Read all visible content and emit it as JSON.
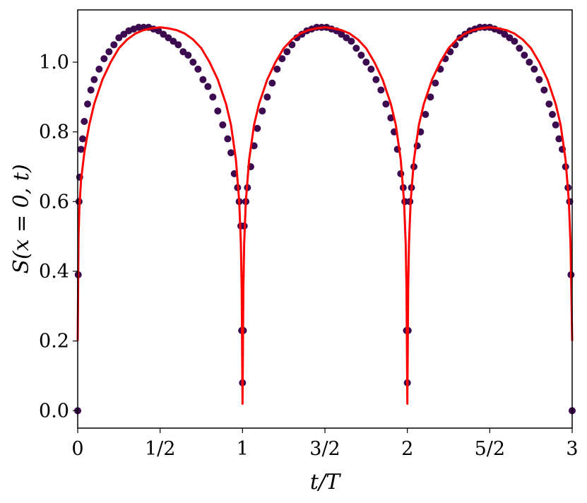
{
  "chart_data": {
    "type": "scatter",
    "xlabel": "t/T",
    "ylabel": "S(x = 0, t)",
    "xlim": [
      0,
      3
    ],
    "ylim": [
      -0.05,
      1.15
    ],
    "x_ticks": [
      {
        "value": 0,
        "label": "0"
      },
      {
        "value": 0.5,
        "label": "1/2"
      },
      {
        "value": 1,
        "label": "1"
      },
      {
        "value": 1.5,
        "label": "3/2"
      },
      {
        "value": 2,
        "label": "2"
      },
      {
        "value": 2.5,
        "label": "5/2"
      },
      {
        "value": 3,
        "label": "3"
      }
    ],
    "y_ticks": [
      {
        "value": 0.0,
        "label": "0.0"
      },
      {
        "value": 0.2,
        "label": "0.2"
      },
      {
        "value": 0.4,
        "label": "0.4"
      },
      {
        "value": 0.6,
        "label": "0.6"
      },
      {
        "value": 0.8,
        "label": "0.8"
      },
      {
        "value": 1.0,
        "label": "1.0"
      }
    ],
    "grid": false,
    "colors": {
      "points": "#3b0a4f",
      "fit_line": "#ff0000"
    },
    "points": {
      "x": [
        0.0,
        0.003,
        0.008,
        0.012,
        0.02,
        0.03,
        0.04,
        0.06,
        0.08,
        0.1,
        0.13,
        0.16,
        0.19,
        0.22,
        0.25,
        0.28,
        0.31,
        0.34,
        0.37,
        0.4,
        0.43,
        0.46,
        0.49,
        0.52,
        0.55,
        0.58,
        0.61,
        0.64,
        0.67,
        0.7,
        0.73,
        0.76,
        0.79,
        0.82,
        0.85,
        0.88,
        0.91,
        0.93,
        0.95,
        0.97,
        0.98,
        0.99,
        0.995,
        1.0,
        1.005,
        1.01,
        1.02,
        1.03,
        1.05,
        1.07,
        1.09,
        1.12,
        1.15,
        1.18,
        1.21,
        1.24,
        1.27,
        1.3,
        1.33,
        1.36,
        1.39,
        1.42,
        1.45,
        1.48,
        1.51,
        1.54,
        1.57,
        1.6,
        1.63,
        1.66,
        1.69,
        1.72,
        1.75,
        1.78,
        1.81,
        1.84,
        1.87,
        1.9,
        1.92,
        1.94,
        1.96,
        1.975,
        1.985,
        1.995,
        2.0,
        2.005,
        2.015,
        2.025,
        2.04,
        2.06,
        2.08,
        2.11,
        2.14,
        2.17,
        2.2,
        2.23,
        2.26,
        2.29,
        2.32,
        2.35,
        2.38,
        2.41,
        2.44,
        2.47,
        2.5,
        2.53,
        2.56,
        2.59,
        2.62,
        2.65,
        2.68,
        2.71,
        2.74,
        2.77,
        2.8,
        2.83,
        2.86,
        2.88,
        2.9,
        2.92,
        2.94,
        2.96,
        2.975,
        2.985,
        2.993,
        3.0
      ],
      "y": [
        0.0,
        0.39,
        0.6,
        0.67,
        0.75,
        0.78,
        0.83,
        0.88,
        0.92,
        0.95,
        0.98,
        1.01,
        1.03,
        1.05,
        1.07,
        1.08,
        1.09,
        1.095,
        1.1,
        1.1,
        1.1,
        1.095,
        1.09,
        1.08,
        1.07,
        1.06,
        1.05,
        1.03,
        1.02,
        1.0,
        0.98,
        0.95,
        0.93,
        0.9,
        0.86,
        0.82,
        0.78,
        0.74,
        0.68,
        0.64,
        0.6,
        0.53,
        0.23,
        0.08,
        0.23,
        0.53,
        0.6,
        0.64,
        0.7,
        0.76,
        0.81,
        0.86,
        0.9,
        0.94,
        0.98,
        1.01,
        1.03,
        1.05,
        1.07,
        1.08,
        1.09,
        1.095,
        1.1,
        1.1,
        1.1,
        1.095,
        1.09,
        1.08,
        1.07,
        1.06,
        1.04,
        1.02,
        1.0,
        0.98,
        0.95,
        0.92,
        0.88,
        0.84,
        0.8,
        0.75,
        0.68,
        0.64,
        0.6,
        0.23,
        0.08,
        0.23,
        0.6,
        0.64,
        0.7,
        0.76,
        0.8,
        0.85,
        0.9,
        0.94,
        0.98,
        1.01,
        1.03,
        1.05,
        1.07,
        1.08,
        1.09,
        1.095,
        1.1,
        1.1,
        1.1,
        1.095,
        1.09,
        1.08,
        1.07,
        1.06,
        1.04,
        1.02,
        1.0,
        0.98,
        0.95,
        0.92,
        0.88,
        0.85,
        0.82,
        0.78,
        0.75,
        0.7,
        0.64,
        0.6,
        0.39,
        0.0
      ]
    },
    "fit_line": {
      "x": [
        0.0,
        0.005,
        0.01,
        0.02,
        0.04,
        0.07,
        0.1,
        0.15,
        0.2,
        0.25,
        0.3,
        0.35,
        0.4,
        0.45,
        0.5,
        0.55,
        0.6,
        0.65,
        0.7,
        0.75,
        0.8,
        0.85,
        0.9,
        0.93,
        0.96,
        0.98,
        0.99,
        0.995,
        1.0,
        1.005,
        1.01,
        1.02,
        1.04,
        1.07,
        1.1,
        1.15,
        1.2,
        1.25,
        1.3,
        1.35,
        1.4,
        1.45,
        1.5,
        1.55,
        1.6,
        1.65,
        1.7,
        1.75,
        1.8,
        1.85,
        1.9,
        1.93,
        1.96,
        1.98,
        1.99,
        1.995,
        2.0,
        2.005,
        2.01,
        2.02,
        2.04,
        2.07,
        2.1,
        2.15,
        2.2,
        2.25,
        2.3,
        2.35,
        2.4,
        2.45,
        2.5,
        2.55,
        2.6,
        2.65,
        2.7,
        2.75,
        2.8,
        2.85,
        2.9,
        2.93,
        2.96,
        2.98,
        2.99,
        2.995,
        3.0
      ],
      "y": [
        0.2,
        0.5,
        0.58,
        0.66,
        0.74,
        0.82,
        0.88,
        0.95,
        1.0,
        1.04,
        1.065,
        1.082,
        1.092,
        1.097,
        1.1,
        1.097,
        1.092,
        1.082,
        1.065,
        1.04,
        1.0,
        0.95,
        0.88,
        0.82,
        0.72,
        0.6,
        0.48,
        0.35,
        0.02,
        0.35,
        0.48,
        0.6,
        0.72,
        0.82,
        0.88,
        0.95,
        1.0,
        1.04,
        1.065,
        1.082,
        1.092,
        1.097,
        1.1,
        1.097,
        1.092,
        1.082,
        1.065,
        1.04,
        1.0,
        0.95,
        0.88,
        0.82,
        0.72,
        0.6,
        0.48,
        0.35,
        0.02,
        0.35,
        0.48,
        0.6,
        0.72,
        0.82,
        0.88,
        0.95,
        1.0,
        1.04,
        1.065,
        1.082,
        1.092,
        1.097,
        1.1,
        1.097,
        1.092,
        1.082,
        1.065,
        1.04,
        1.0,
        0.95,
        0.88,
        0.82,
        0.72,
        0.6,
        0.48,
        0.35,
        0.2
      ]
    }
  }
}
